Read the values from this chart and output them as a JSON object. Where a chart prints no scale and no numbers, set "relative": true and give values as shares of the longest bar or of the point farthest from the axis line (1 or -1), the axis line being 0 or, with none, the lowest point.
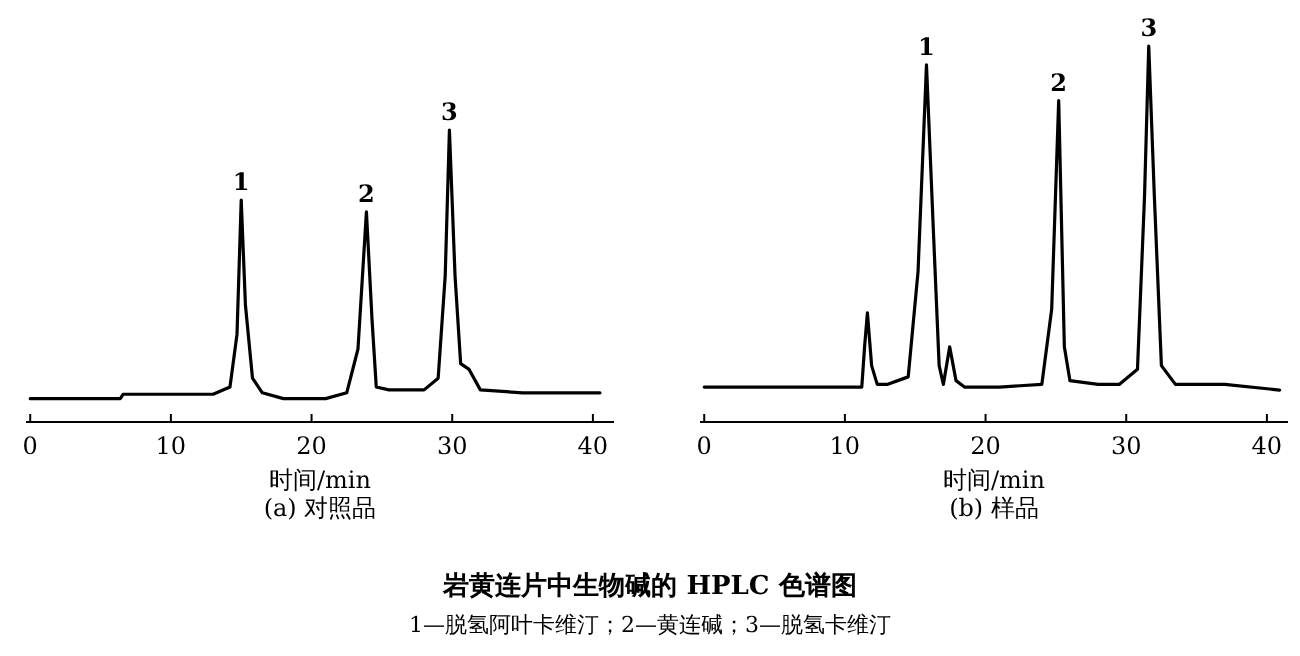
{
  "chart_data": [
    {
      "type": "line",
      "title": "岩黄连片中生物碱的 HPLC 色谱图",
      "subtitle": "(a) 对照品",
      "xlabel": "时间/min",
      "relative": true,
      "xlim": [
        -0.3,
        41.5
      ],
      "xticks": [
        0,
        10,
        20,
        30,
        40
      ],
      "tick_labels": "x",
      "series": [
        {
          "color": "#000000",
          "x": [
            0,
            6.4,
            6.6,
            10,
            13,
            14.2,
            14.7,
            15.0,
            15.3,
            15.8,
            16.5,
            18,
            21,
            22.5,
            23.3,
            23.9,
            24.3,
            24.6,
            25.5,
            28,
            29.0,
            29.5,
            29.8,
            30.2,
            30.6,
            31.2,
            32,
            35,
            40.5
          ],
          "values": [
            0.08,
            0.08,
            0.095,
            0.095,
            0.095,
            0.12,
            0.3,
            0.76,
            0.4,
            0.15,
            0.1,
            0.08,
            0.08,
            0.1,
            0.25,
            0.72,
            0.35,
            0.12,
            0.11,
            0.11,
            0.15,
            0.5,
            1,
            0.5,
            0.2,
            0.18,
            0.11,
            0.1,
            0.1
          ]
        }
      ],
      "annotations": [
        "1—脱氢阿叶卡维汀；2—黄连碱；3—脱氢卡维汀",
        {
          "text": "1",
          "x": 15.0,
          "y": 0.76
        },
        {
          "text": "2",
          "x": 23.9,
          "y": 0.72
        },
        {
          "text": "3",
          "x": 29.8,
          "y": 1
        }
      ]
    },
    {
      "type": "line",
      "subtitle": "(b) 样品",
      "xlabel": "时间/min",
      "relative": true,
      "xlim": [
        -0.3,
        41.5
      ],
      "xticks": [
        0,
        10,
        20,
        30,
        40
      ],
      "tick_labels": "x",
      "series": [
        {
          "color": "#000000",
          "x": [
            0,
            11.2,
            11.4,
            11.6,
            11.9,
            12.3,
            13,
            14.5,
            15.2,
            15.8,
            16.3,
            16.7,
            17.0,
            17.45,
            17.9,
            18.5,
            21,
            24,
            24.7,
            25.2,
            25.6,
            26,
            28,
            29.5,
            30.8,
            31.3,
            31.6,
            32.0,
            32.5,
            33.5,
            37,
            40.9
          ],
          "values": [
            0.093,
            0.093,
            0.2,
            0.29,
            0.15,
            0.1,
            0.1,
            0.12,
            0.4,
            0.95,
            0.5,
            0.15,
            0.1,
            0.2,
            0.11,
            0.093,
            0.093,
            0.1,
            0.3,
            0.855,
            0.2,
            0.11,
            0.1,
            0.1,
            0.14,
            0.6,
            1,
            0.6,
            0.15,
            0.1,
            0.1,
            0.085
          ]
        }
      ],
      "annotations": [
        {
          "text": "1",
          "x": 15.8,
          "y": 0.95
        },
        {
          "text": "2",
          "x": 25.2,
          "y": 0.855
        },
        {
          "text": "3",
          "x": 31.6,
          "y": 1
        }
      ]
    }
  ]
}
